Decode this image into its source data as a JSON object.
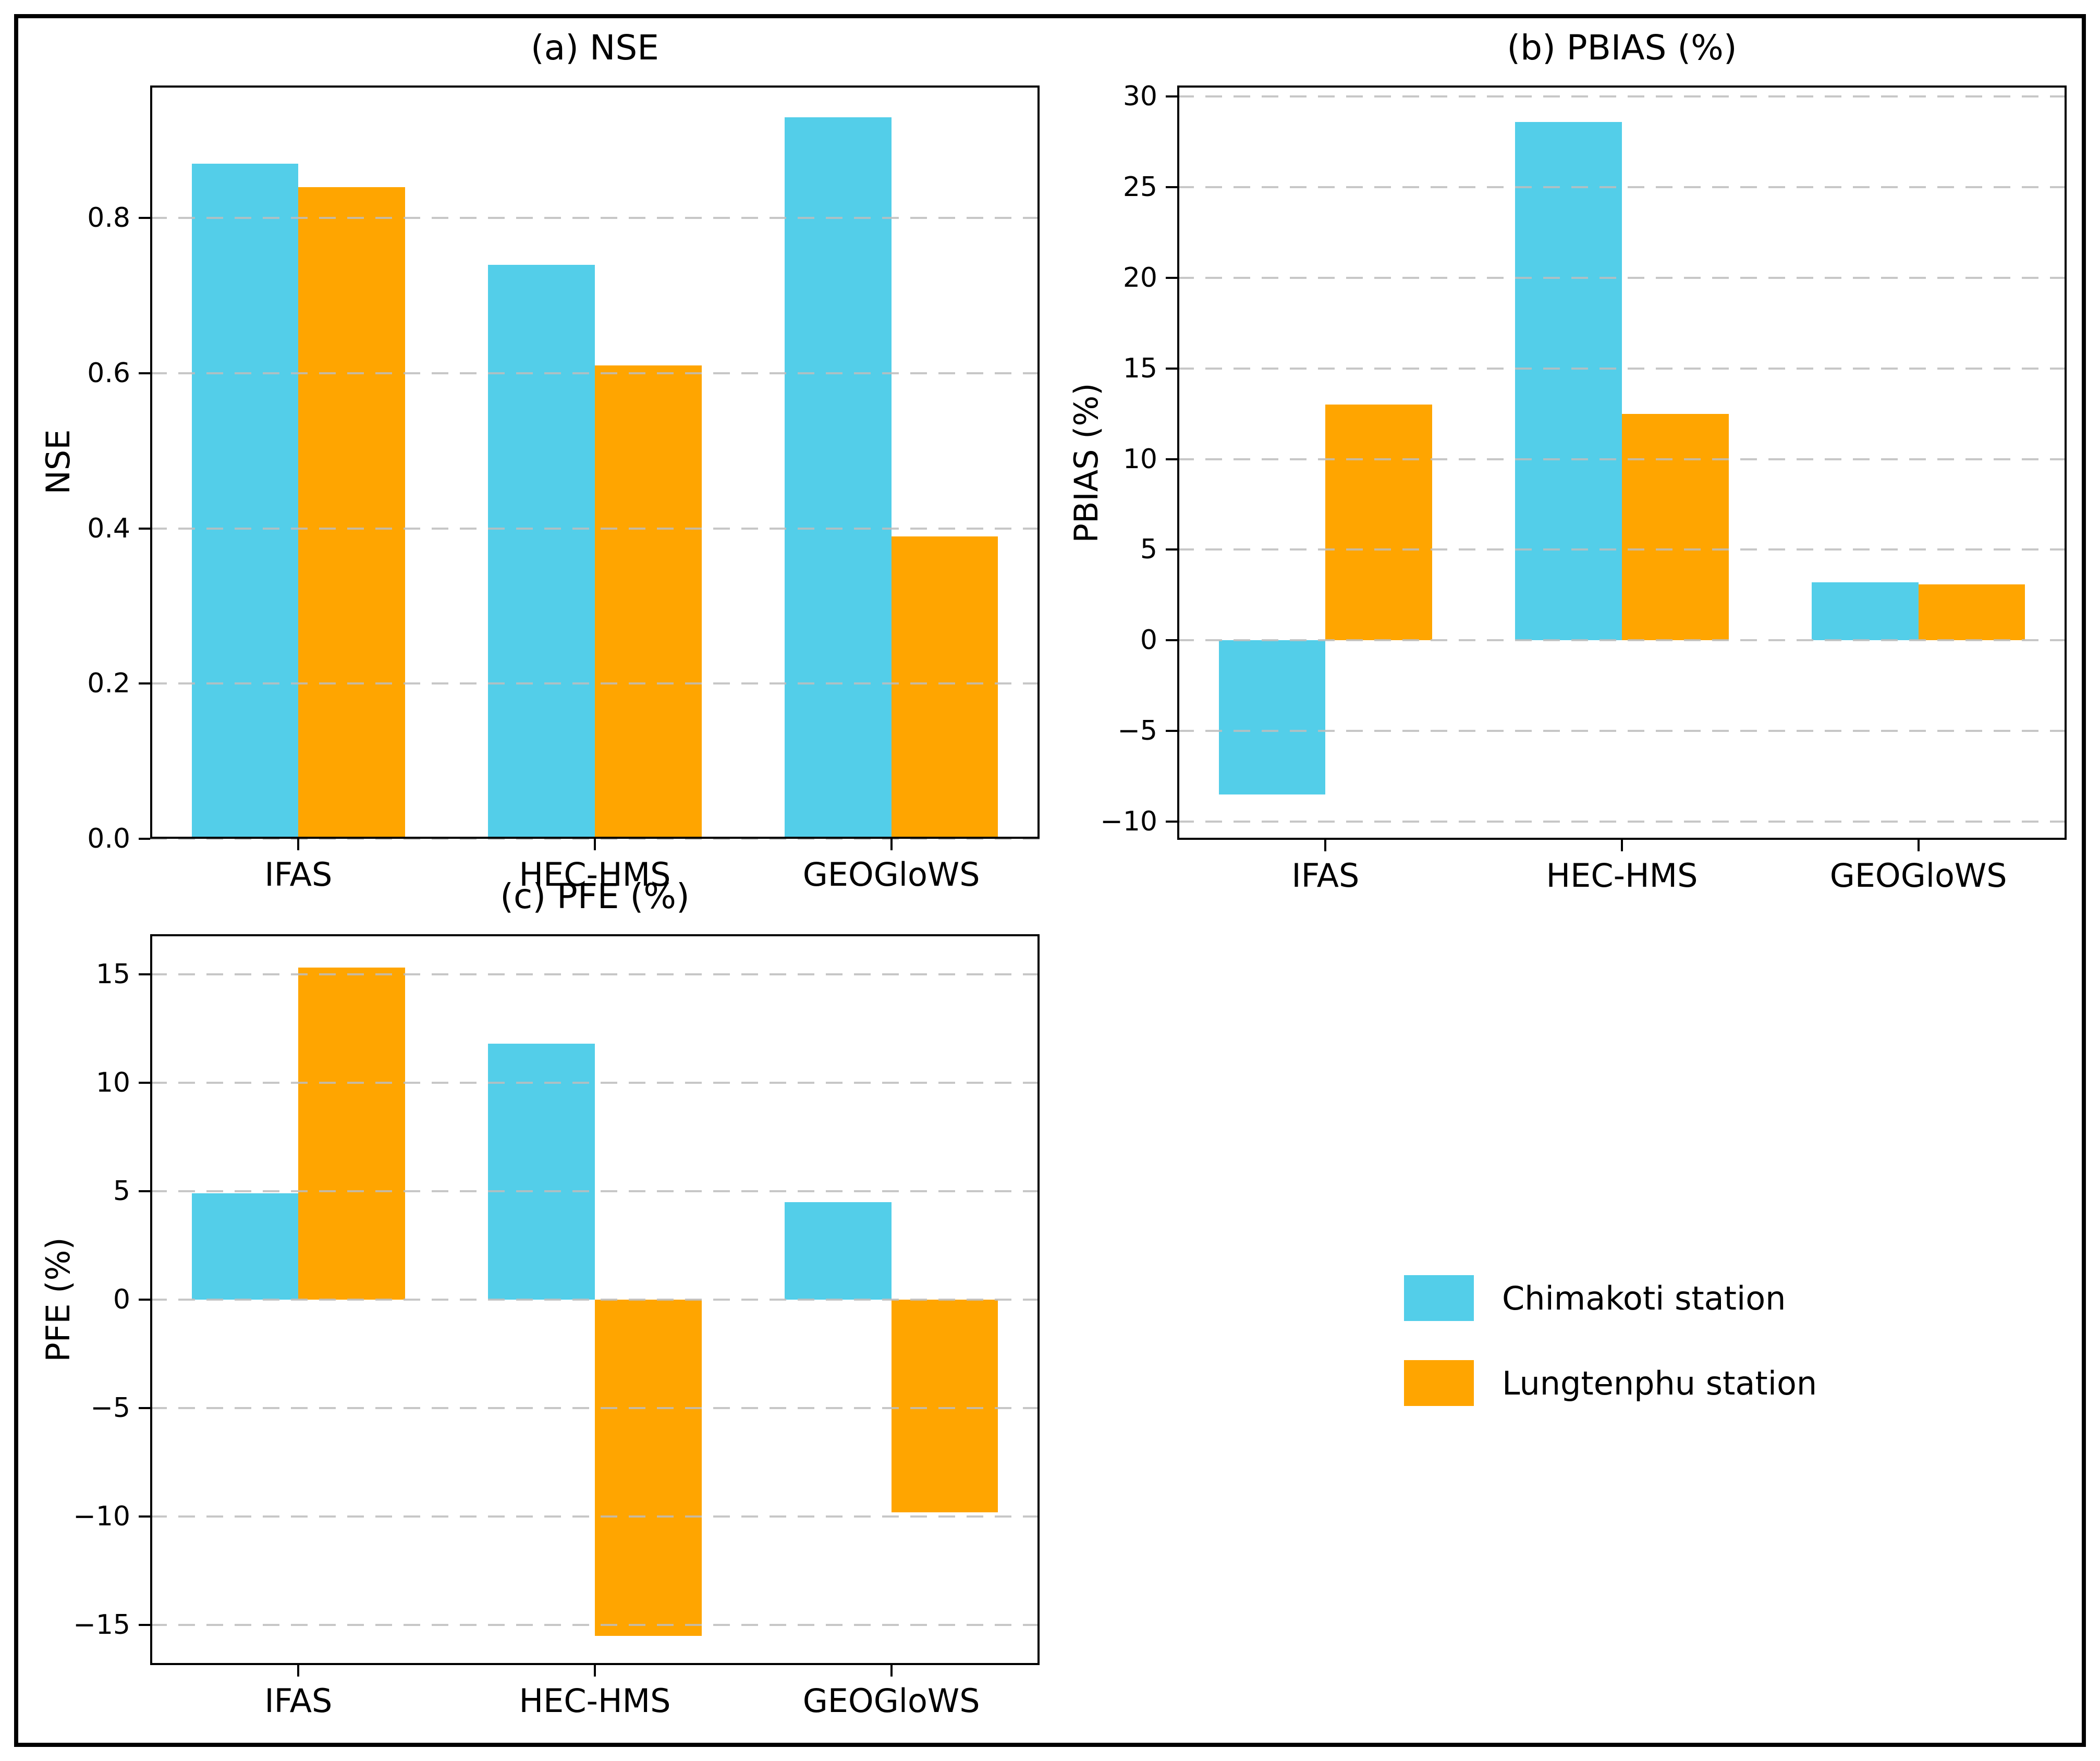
{
  "colors": {
    "chimakoti": "#53CEE9",
    "lungtenphu": "#FFA500",
    "grid": "#BDBDBD",
    "spine": "#000000",
    "background": "#FFFFFF"
  },
  "legend": {
    "items": [
      {
        "key": "chimakoti",
        "label": "Chimakoti station",
        "color": "#53CEE9"
      },
      {
        "key": "lungtenphu",
        "label": "Lungtenphu station",
        "color": "#FFA500"
      }
    ]
  },
  "chart_data": [
    {
      "id": "a",
      "type": "bar",
      "title": "(a) NSE",
      "ylabel": "NSE",
      "xlabel": "",
      "categories": [
        "IFAS",
        "HEC-HMS",
        "GEOGloWS"
      ],
      "category_keys": [
        "ifas",
        "hec-hms",
        "geoglows"
      ],
      "series": [
        {
          "key": "chimakoti",
          "name": "Chimakoti station",
          "color": "#53CEE9",
          "values": [
            0.87,
            0.74,
            0.93
          ]
        },
        {
          "key": "lungtenphu",
          "name": "Lungtenphu station",
          "color": "#FFA500",
          "values": [
            0.84,
            0.61,
            0.39
          ]
        }
      ],
      "ylim": [
        0,
        0.971
      ],
      "yticks": [
        0.0,
        0.2,
        0.4,
        0.6,
        0.8
      ],
      "ytick_labels": [
        "0.0",
        "0.2",
        "0.4",
        "0.6",
        "0.8"
      ],
      "grid": {
        "axis": "y",
        "style": "dashed",
        "drawn_over_bars": true
      },
      "legend_position": "none"
    },
    {
      "id": "b",
      "type": "bar",
      "title": "(b) PBIAS (%)",
      "ylabel": "PBIAS (%)",
      "xlabel": "",
      "categories": [
        "IFAS",
        "HEC-HMS",
        "GEOGloWS"
      ],
      "category_keys": [
        "ifas",
        "hec-hms",
        "geoglows"
      ],
      "series": [
        {
          "key": "chimakoti",
          "name": "Chimakoti station",
          "color": "#53CEE9",
          "values": [
            -8.5,
            28.6,
            3.2
          ]
        },
        {
          "key": "lungtenphu",
          "name": "Lungtenphu station",
          "color": "#FFA500",
          "values": [
            13.0,
            12.5,
            3.1
          ]
        }
      ],
      "ylim": [
        -11,
        30.6
      ],
      "yticks": [
        -10,
        -5,
        0,
        5,
        10,
        15,
        20,
        25,
        30
      ],
      "ytick_labels": [
        "−10",
        "−5",
        "0",
        "5",
        "10",
        "15",
        "20",
        "25",
        "30"
      ],
      "grid": {
        "axis": "y",
        "style": "dashed",
        "drawn_over_bars": true
      },
      "legend_position": "none"
    },
    {
      "id": "c",
      "type": "bar",
      "title": "(c) PFE (%)",
      "ylabel": "PFE (%)",
      "xlabel": "",
      "categories": [
        "IFAS",
        "HEC-HMS",
        "GEOGloWS"
      ],
      "category_keys": [
        "ifas",
        "hec-hms",
        "geoglows"
      ],
      "series": [
        {
          "key": "chimakoti",
          "name": "Chimakoti station",
          "color": "#53CEE9",
          "values": [
            4.9,
            11.8,
            4.5
          ]
        },
        {
          "key": "lungtenphu",
          "name": "Lungtenphu station",
          "color": "#FFA500",
          "values": [
            15.3,
            -15.5,
            -9.8
          ]
        }
      ],
      "ylim": [
        -16.85,
        16.85
      ],
      "yticks": [
        -15,
        -10,
        -5,
        0,
        5,
        10,
        15
      ],
      "ytick_labels": [
        "−15",
        "−10",
        "−5",
        "0",
        "5",
        "10",
        "15"
      ],
      "grid": {
        "axis": "y",
        "style": "dashed",
        "drawn_over_bars": true
      },
      "legend_position": "none"
    }
  ]
}
